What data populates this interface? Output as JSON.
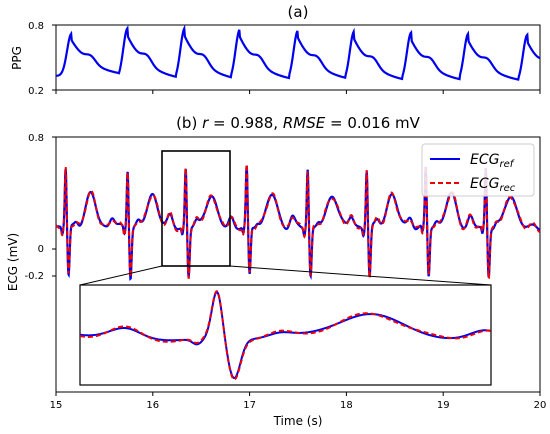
{
  "chart_data": [
    {
      "panel": "a",
      "type": "line",
      "title": "(a)",
      "ylabel": "PPG",
      "xlabel": "",
      "xlim": [
        15,
        20
      ],
      "ylim": [
        0.2,
        0.8
      ],
      "yticks": [
        "0.8",
        "0.2"
      ],
      "beats_t": [
        15.16,
        15.74,
        16.33,
        16.9,
        17.5,
        18.08,
        18.67,
        19.26,
        19.87
      ],
      "peak_values": [
        0.72,
        0.77,
        0.77,
        0.76,
        0.75,
        0.74,
        0.73,
        0.72,
        0.71
      ],
      "trough_values": [
        0.33,
        0.29,
        0.28,
        0.28,
        0.28,
        0.27,
        0.27,
        0.27,
        0.26
      ],
      "series": [
        {
          "color": "#0000ee"
        }
      ]
    },
    {
      "panel": "b",
      "type": "line",
      "title_parts": {
        "prefix": "(b) ",
        "r_label": "r",
        "r_text": " = 0.988, ",
        "rmse_label": "RMSE",
        "rmse_text": " = 0.016 mV"
      },
      "xlabel": "Time (s)",
      "ylabel": "ECG (mV)",
      "xlim": [
        15,
        20
      ],
      "ylim": [
        -0.7,
        0.8
      ],
      "yticks": [
        "0.8",
        "0",
        "-0.2"
      ],
      "xticks": [
        "15",
        "16",
        "17",
        "18",
        "19",
        "20"
      ],
      "beats_t": [
        15.1,
        15.74,
        16.34,
        16.97,
        17.6,
        18.21,
        18.82,
        19.44
      ],
      "r_peak_mV": 0.62,
      "s_trough_mV": -0.02,
      "baseline_mV": 0.27,
      "t_wave_mV": 0.46,
      "legend": {
        "position": "top-right"
      },
      "series": [
        {
          "name_main": "ECG",
          "name_sub": "ref",
          "color": "#0000ee",
          "style": "solid"
        },
        {
          "name_main": "ECG",
          "name_sub": "rec",
          "color": "#ee0000",
          "style": "dashed"
        }
      ],
      "zoom_box_x": [
        16.1,
        16.82
      ],
      "inset": {
        "xlim": [
          16.1,
          16.82
        ]
      }
    }
  ]
}
